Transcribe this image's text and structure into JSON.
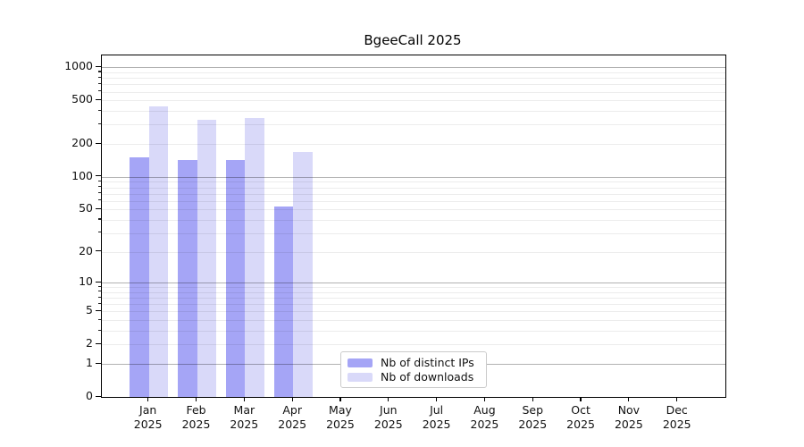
{
  "title": "BgeeCall 2025",
  "chart_data": {
    "type": "bar",
    "title": "BgeeCall 2025",
    "categories": [
      "Jan",
      "Feb",
      "Mar",
      "Apr",
      "May",
      "Jun",
      "Jul",
      "Aug",
      "Sep",
      "Oct",
      "Nov",
      "Dec"
    ],
    "category_year": "2025",
    "series": [
      {
        "name": "Nb of distinct IPs",
        "color": "#a5a5f6",
        "values": [
          150,
          142,
          142,
          53,
          0,
          0,
          0,
          0,
          0,
          0,
          0,
          0
        ]
      },
      {
        "name": "Nb of downloads",
        "color": "#d9d9f9",
        "values": [
          440,
          330,
          345,
          170,
          0,
          0,
          0,
          0,
          0,
          0,
          0,
          0
        ]
      }
    ],
    "yscale": "log1p",
    "ylim": [
      0,
      1285
    ],
    "yticks": [
      0,
      1,
      2,
      5,
      10,
      20,
      50,
      100,
      200,
      500,
      1000
    ],
    "yticks_minor": [
      2,
      3,
      4,
      5,
      6,
      7,
      8,
      9,
      20,
      30,
      40,
      50,
      60,
      70,
      80,
      90,
      200,
      300,
      400,
      500,
      600,
      700,
      800,
      900
    ],
    "yticks_major_grid": [
      1,
      10,
      100,
      1000
    ],
    "grid": "horizontal",
    "legend_position": "lower-center-inside",
    "xlabel": "",
    "ylabel": ""
  },
  "legend": {
    "entries": [
      "Nb of distinct IPs",
      "Nb of downloads"
    ]
  }
}
